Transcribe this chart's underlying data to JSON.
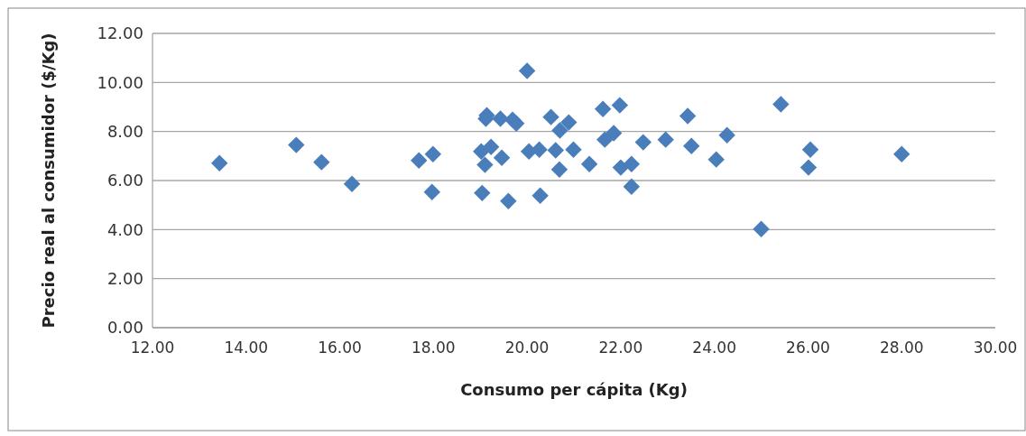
{
  "chart_data": {
    "type": "scatter",
    "xlabel": "Consumo per cápita (Kg)",
    "ylabel": "Precio real al consumidor ($/Kg)",
    "xlim": [
      12,
      30
    ],
    "xticks": [
      {
        "value": 12,
        "label": "12.00"
      },
      {
        "value": 14,
        "label": "14.00"
      },
      {
        "value": 16,
        "label": "16.00"
      },
      {
        "value": 18,
        "label": "18.00"
      },
      {
        "value": 20,
        "label": "20.00"
      },
      {
        "value": 22,
        "label": "22.00"
      },
      {
        "value": 24,
        "label": "24.00"
      },
      {
        "value": 26,
        "label": "26.00"
      },
      {
        "value": 28,
        "label": "28.00"
      },
      {
        "value": 30,
        "label": "30.00"
      }
    ],
    "ylim": [
      0,
      12
    ],
    "yticks": [
      {
        "value": 0,
        "label": "0.00"
      },
      {
        "value": 2,
        "label": "2.00"
      },
      {
        "value": 4,
        "label": "4.00"
      },
      {
        "value": 6,
        "label": "6.00"
      },
      {
        "value": 8,
        "label": "8.00"
      },
      {
        "value": 10,
        "label": "10.00"
      },
      {
        "value": 12,
        "label": "12.00"
      }
    ],
    "grid": "y",
    "marker": "diamond",
    "series": [
      {
        "color": "#4a7ebb",
        "x": [
          13.43,
          15.07,
          15.61,
          16.26,
          17.69,
          17.99,
          17.97,
          19.02,
          19.23,
          19.46,
          19.1,
          19.12,
          19.14,
          19.43,
          19.69,
          19.77,
          20.0,
          20.04,
          20.26,
          20.61,
          20.99,
          20.69,
          20.51,
          20.7,
          20.89,
          21.33,
          21.62,
          21.98,
          21.66,
          21.85,
          22.48,
          22.96,
          23.43,
          23.51,
          24.27,
          24.04,
          22.0,
          22.23,
          22.23,
          19.04,
          19.6,
          20.28,
          25.0,
          25.42,
          26.05,
          26.01,
          28.0
        ],
        "values": [
          6.71,
          7.45,
          6.75,
          5.86,
          6.82,
          7.08,
          5.53,
          7.19,
          7.37,
          6.93,
          6.64,
          8.52,
          8.66,
          8.52,
          8.48,
          8.33,
          10.47,
          7.19,
          7.26,
          7.23,
          7.26,
          6.45,
          8.59,
          8.04,
          8.37,
          6.67,
          8.92,
          9.07,
          7.67,
          7.93,
          7.56,
          7.67,
          8.63,
          7.41,
          7.85,
          6.86,
          6.53,
          6.67,
          5.75,
          5.49,
          5.16,
          5.38,
          4.02,
          9.11,
          7.26,
          6.53,
          7.08
        ]
      }
    ]
  }
}
